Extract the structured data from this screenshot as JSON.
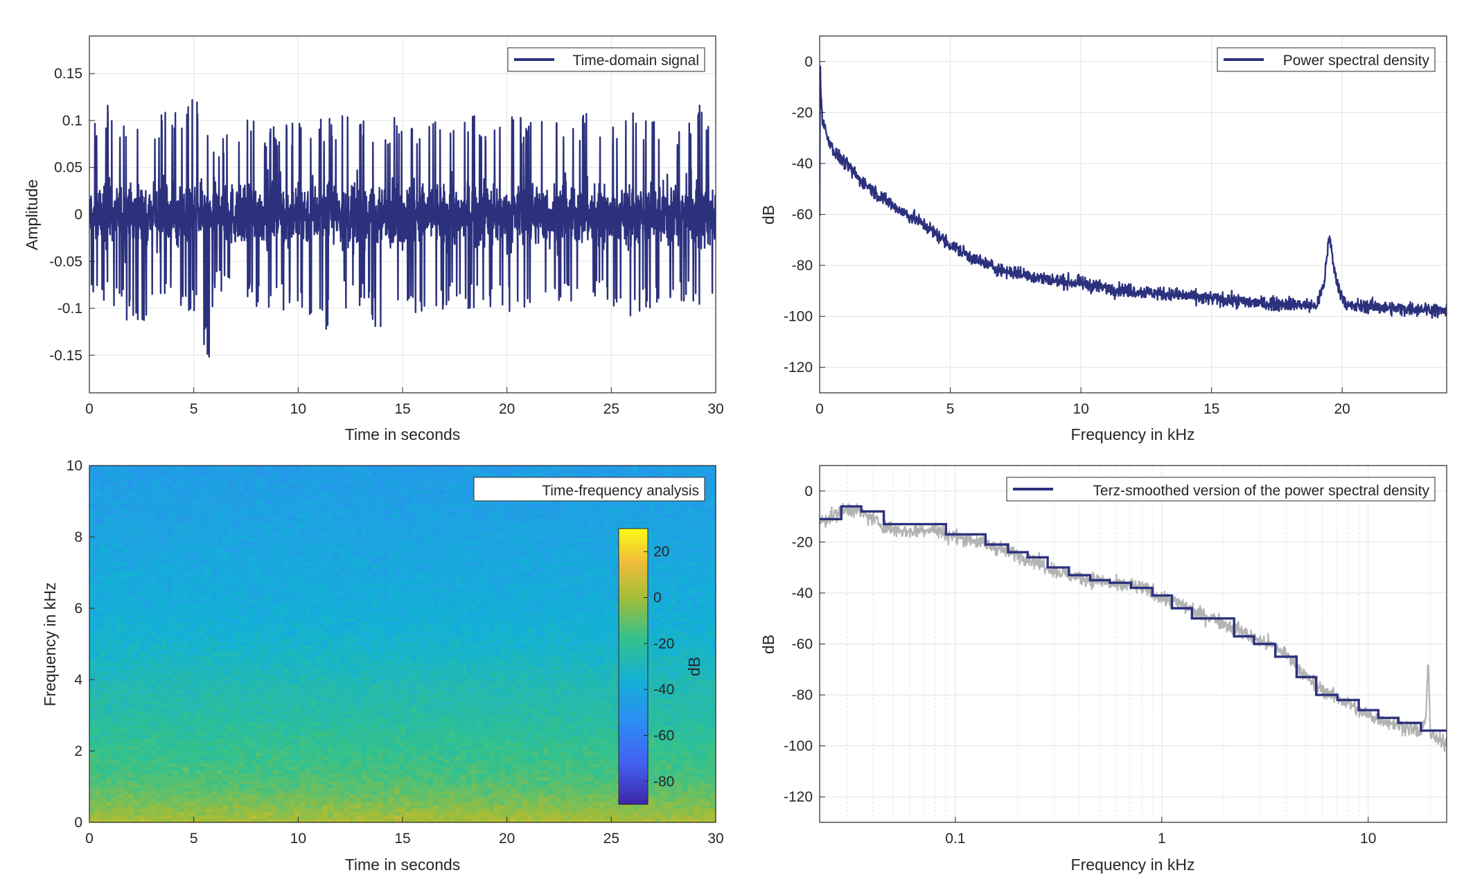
{
  "colors": {
    "line": "#2c317e",
    "raw_psd": "#b3b3b3",
    "grid": "#e3e3e3",
    "axis": "#262626"
  },
  "chart_data": [
    {
      "type": "line",
      "xlabel": "Time in seconds",
      "ylabel": "Amplitude",
      "xlim": [
        0,
        30
      ],
      "ylim": [
        -0.19,
        0.19
      ],
      "xticks": [
        0,
        5,
        10,
        15,
        20,
        25,
        30
      ],
      "xtick_labels": [
        "0",
        "5",
        "10",
        "15",
        "20",
        "25",
        "30"
      ],
      "yticks": [
        -0.15,
        -0.1,
        -0.05,
        0,
        0.05,
        0.1,
        0.15
      ],
      "ytick_labels": [
        "-0.15",
        "-0.1",
        "-0.05",
        "0",
        "0.05",
        "0.1",
        "0.15"
      ],
      "grid": true,
      "legend": "top-right",
      "series": [
        {
          "name": "Time-domain signal",
          "envelope_t": [
            0,
            1,
            2,
            3,
            4,
            5,
            5.8,
            6,
            7,
            8,
            9,
            10,
            11,
            12,
            12.3,
            13,
            14,
            15,
            16,
            17,
            18,
            19,
            20,
            21,
            22,
            23,
            24,
            25,
            26,
            27,
            28,
            29,
            30
          ],
          "envelope_max": [
            0.11,
            0.12,
            0.1,
            0.11,
            0.11,
            0.13,
            0.1,
            0.07,
            0.11,
            0.1,
            0.1,
            0.1,
            0.11,
            0.1,
            0.14,
            0.11,
            0.1,
            0.11,
            0.1,
            0.1,
            0.11,
            0.1,
            0.11,
            0.1,
            0.1,
            0.1,
            0.11,
            0.1,
            0.11,
            0.1,
            0.1,
            0.12,
            0.12
          ],
          "envelope_min": [
            -0.09,
            -0.1,
            -0.12,
            -0.11,
            -0.1,
            -0.11,
            -0.16,
            -0.08,
            -0.1,
            -0.1,
            -0.1,
            -0.11,
            -0.14,
            -0.1,
            -0.1,
            -0.1,
            -0.13,
            -0.1,
            -0.11,
            -0.1,
            -0.1,
            -0.1,
            -0.11,
            -0.1,
            -0.1,
            -0.1,
            -0.09,
            -0.1,
            -0.11,
            -0.1,
            -0.1,
            -0.1,
            -0.11
          ]
        }
      ]
    },
    {
      "type": "line",
      "xlabel": "Frequency in kHz",
      "ylabel": "dB",
      "xlim": [
        0,
        24
      ],
      "ylim": [
        -130,
        10
      ],
      "xticks": [
        0,
        5,
        10,
        15,
        20
      ],
      "xtick_labels": [
        "0",
        "5",
        "10",
        "15",
        "20"
      ],
      "yticks": [
        -120,
        -100,
        -80,
        -60,
        -40,
        -20,
        0
      ],
      "ytick_labels": [
        "-120",
        "-100",
        "-80",
        "-60",
        "-40",
        "-20",
        "0"
      ],
      "grid": true,
      "legend": "top-right",
      "series": [
        {
          "name": "Power spectral density",
          "x": [
            0,
            0.02,
            0.05,
            0.1,
            0.3,
            0.6,
            1,
            1.5,
            2,
            2.2,
            3,
            4,
            5,
            6,
            7,
            8,
            9,
            10,
            11,
            12,
            13,
            14,
            15,
            16,
            17,
            18,
            19,
            19.3,
            19.5,
            19.7,
            19.9,
            20.2,
            21,
            22,
            23,
            24
          ],
          "y": [
            -60,
            0,
            -12,
            -22,
            -30,
            -36,
            -40,
            -46,
            -50,
            -52,
            -58,
            -64,
            -72,
            -78,
            -82,
            -84,
            -86,
            -87,
            -89,
            -90,
            -91,
            -92,
            -93,
            -94,
            -95,
            -95,
            -96,
            -88,
            -68,
            -82,
            -90,
            -96,
            -96,
            -97,
            -97,
            -98
          ]
        }
      ]
    },
    {
      "type": "heatmap",
      "xlabel": "Time in seconds",
      "ylabel": "Frequency in kHz",
      "xlim": [
        0,
        30
      ],
      "ylim": [
        0,
        10
      ],
      "xticks": [
        0,
        5,
        10,
        15,
        20,
        25,
        30
      ],
      "xtick_labels": [
        "0",
        "5",
        "10",
        "15",
        "20",
        "25",
        "30"
      ],
      "yticks": [
        0,
        2,
        4,
        6,
        8,
        10
      ],
      "ytick_labels": [
        "0",
        "2",
        "4",
        "6",
        "8",
        "10"
      ],
      "legend_label": "Time-frequency analysis",
      "colorbar": {
        "label": "dB",
        "range": [
          -90,
          30
        ],
        "ticks": [
          -80,
          -60,
          -40,
          -20,
          0,
          20
        ],
        "tick_labels": [
          "-80",
          "-60",
          "-40",
          "-20",
          "0",
          "20"
        ]
      },
      "level_by_frequency_khz": [
        0,
        0.5,
        1,
        1.5,
        2,
        3,
        4,
        5,
        6,
        8,
        10
      ],
      "level_db": [
        2,
        -6,
        -12,
        -16,
        -18,
        -24,
        -28,
        -34,
        -38,
        -42,
        -46
      ]
    },
    {
      "type": "line",
      "xlabel": "Frequency in kHz",
      "ylabel": "dB",
      "xscale": "log",
      "xlim": [
        0.022,
        24
      ],
      "ylim": [
        -130,
        10
      ],
      "xticks": [
        0.1,
        1,
        10
      ],
      "xtick_labels": [
        "0.1",
        "1",
        "10"
      ],
      "yticks": [
        -120,
        -100,
        -80,
        -60,
        -40,
        -20,
        0
      ],
      "ytick_labels": [
        "-120",
        "-100",
        "-80",
        "-60",
        "-40",
        "-20",
        "0"
      ],
      "grid": true,
      "legend": "top-right",
      "series": [
        {
          "name": "Terz-smoothed version of the power spectral density",
          "x": [
            0.022,
            0.028,
            0.028,
            0.035,
            0.035,
            0.045,
            0.045,
            0.056,
            0.056,
            0.071,
            0.071,
            0.09,
            0.09,
            0.112,
            0.112,
            0.14,
            0.14,
            0.18,
            0.18,
            0.224,
            0.224,
            0.28,
            0.28,
            0.355,
            0.355,
            0.45,
            0.45,
            0.56,
            0.56,
            0.71,
            0.71,
            0.9,
            0.9,
            1.12,
            1.12,
            1.4,
            1.4,
            1.8,
            1.8,
            2.24,
            2.24,
            2.8,
            2.8,
            3.55,
            3.55,
            4.5,
            4.5,
            5.6,
            5.6,
            7.1,
            7.1,
            9,
            9,
            11.2,
            11.2,
            14,
            14,
            18,
            18,
            24
          ],
          "y": [
            -11,
            -11,
            -6,
            -6,
            -8,
            -8,
            -13,
            -13,
            -13,
            -13,
            -13,
            -13,
            -17,
            -17,
            -17,
            -17,
            -21,
            -21,
            -24,
            -24,
            -26,
            -26,
            -30,
            -30,
            -33,
            -33,
            -35,
            -35,
            -36,
            -36,
            -38,
            -38,
            -41,
            -41,
            -46,
            -46,
            -50,
            -50,
            -50,
            -50,
            -57,
            -57,
            -60,
            -60,
            -65,
            -65,
            -73,
            -73,
            -80,
            -80,
            -82,
            -82,
            -86,
            -86,
            -89,
            -89,
            -91,
            -91,
            -94,
            -94
          ]
        },
        {
          "name": "",
          "x": [
            0.022,
            0.025,
            0.028,
            0.032,
            0.036,
            0.04,
            0.045,
            0.05,
            0.06,
            0.07,
            0.08,
            0.09,
            0.1,
            0.12,
            0.14,
            0.17,
            0.2,
            0.25,
            0.3,
            0.35,
            0.4,
            0.5,
            0.6,
            0.7,
            0.8,
            0.9,
            1,
            1.2,
            1.5,
            1.8,
            2,
            2.3,
            2.8,
            3.3,
            4,
            4.5,
            5,
            6,
            7,
            8,
            9,
            10,
            12,
            14,
            16,
            18,
            19,
            19.5,
            20,
            21,
            22,
            24
          ],
          "y": [
            -12,
            -10,
            -8,
            -7,
            -9,
            -11,
            -14,
            -15,
            -16,
            -15,
            -15,
            -17,
            -18,
            -19,
            -21,
            -23,
            -25,
            -28,
            -31,
            -33,
            -34,
            -35,
            -37,
            -37,
            -38,
            -40,
            -42,
            -44,
            -48,
            -50,
            -52,
            -54,
            -58,
            -60,
            -64,
            -68,
            -73,
            -78,
            -81,
            -83,
            -86,
            -88,
            -90,
            -92,
            -93,
            -95,
            -90,
            -65,
            -95,
            -97,
            -98,
            -99
          ]
        }
      ]
    }
  ]
}
